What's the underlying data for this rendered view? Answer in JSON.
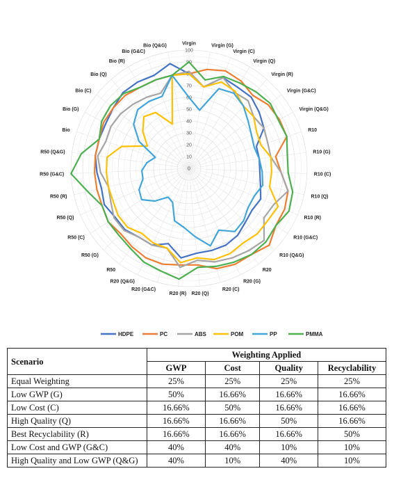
{
  "chart_data": {
    "type": "radar",
    "axes": [
      "Virgin",
      "Virgin (G)",
      "Virgin (C)",
      "Virgin (Q)",
      "Virgin (R)",
      "Virgin (G&C)",
      "Virgin (Q&G)",
      "R10",
      "R10 (G)",
      "R10 (C)",
      "R10 (Q)",
      "R10 (R)",
      "R10 (G&C)",
      "R10 (Q&G)",
      "R20",
      "R20 (G)",
      "R20 (C)",
      "R20 (Q)",
      "R20 (R)",
      "R20 (G&C)",
      "R20 (Q&G)",
      "R50",
      "R50 (G)",
      "R50 (C)",
      "R50 (Q)",
      "R50 (R)",
      "R50 (G&C)",
      "R50 (Q&G)",
      "Bio",
      "Bio (G)",
      "Bio (C)",
      "Bio (Q)",
      "Bio (R)",
      "Bio (G&C)",
      "Bio (Q&G)"
    ],
    "r_ticks": [
      0,
      10,
      20,
      30,
      40,
      50,
      60,
      70,
      80,
      90,
      100
    ],
    "rlim": [
      0,
      100
    ],
    "legend_position": "bottom",
    "series": [
      {
        "name": "HDPE",
        "color": "#4472C4",
        "values": [
          80,
          70,
          82,
          80,
          80,
          76,
          72,
          60,
          60,
          60,
          62,
          66,
          64,
          66,
          70,
          72,
          72,
          72,
          76,
          66,
          72,
          72,
          75,
          75,
          78,
          76,
          78,
          80,
          80,
          80,
          82,
          85,
          85,
          84,
          90
        ]
      },
      {
        "name": "PC",
        "color": "#ED7D31",
        "values": [
          80,
          85,
          88,
          86,
          82,
          86,
          87,
          87,
          74,
          78,
          86,
          88,
          88,
          94,
          90,
          90,
          88,
          82,
          82,
          84,
          84,
          82,
          80,
          82,
          80,
          80,
          80,
          80,
          80,
          82,
          82,
          82,
          80,
          80,
          80
        ]
      },
      {
        "name": "ABS",
        "color": "#A5A5A5",
        "values": [
          82,
          70,
          82,
          75,
          76,
          70,
          72,
          70,
          70,
          78,
          86,
          78,
          76,
          88,
          86,
          84,
          82,
          78,
          84,
          70,
          72,
          72,
          76,
          76,
          72,
          70,
          75,
          78,
          74,
          75,
          74,
          72,
          70,
          68,
          80
        ]
      },
      {
        "name": "POM",
        "color": "#FFC000",
        "values": [
          80,
          70,
          78,
          76,
          70,
          70,
          65,
          64,
          70,
          70,
          70,
          82,
          80,
          80,
          78,
          80,
          80,
          76,
          80,
          70,
          70,
          68,
          72,
          72,
          70,
          70,
          70,
          70,
          60,
          40,
          50,
          58,
          55,
          40,
          80
        ]
      },
      {
        "name": "PP",
        "color": "#41A5D9",
        "values": [
          60,
          50,
          72,
          74,
          70,
          64,
          60,
          58,
          60,
          62,
          64,
          60,
          60,
          64,
          66,
          58,
          68,
          58,
          50,
          46,
          32,
          30,
          40,
          48,
          46,
          40,
          40,
          36,
          30,
          48,
          60,
          66,
          66,
          65,
          80
        ]
      },
      {
        "name": "PMMA",
        "color": "#4CAF50",
        "values": [
          90,
          76,
          83,
          84,
          86,
          88,
          86,
          87,
          84,
          84,
          90,
          92,
          88,
          90,
          90,
          88,
          86,
          84,
          94,
          90,
          88,
          84,
          82,
          82,
          80,
          88,
          100,
          92,
          80,
          84,
          85,
          84,
          80,
          80,
          80
        ]
      }
    ]
  },
  "table": {
    "header_scenario": "Scenario",
    "header_group": "Weighting Applied",
    "columns": [
      "GWP",
      "Cost",
      "Quality",
      "Recyclability"
    ],
    "rows": [
      {
        "name": "Equal Weighting",
        "values": [
          "25%",
          "25%",
          "25%",
          "25%"
        ]
      },
      {
        "name": "Low GWP (G)",
        "values": [
          "50%",
          "16.66%",
          "16.66%",
          "16.66%"
        ]
      },
      {
        "name": "Low Cost (C)",
        "values": [
          "16.66%",
          "50%",
          "16.66%",
          "16.66%"
        ]
      },
      {
        "name": "High Quality (Q)",
        "values": [
          "16.66%",
          "16.66%",
          "50%",
          "16.66%"
        ]
      },
      {
        "name": "Best Recyclability (R)",
        "values": [
          "16.66%",
          "16.66%",
          "16.66%",
          "50%"
        ]
      },
      {
        "name": "Low Cost and GWP (G&C)",
        "values": [
          "40%",
          "40%",
          "10%",
          "10%"
        ]
      },
      {
        "name": "High Quality and Low GWP (Q&G)",
        "values": [
          "40%",
          "10%",
          "40%",
          "10%"
        ]
      }
    ]
  }
}
